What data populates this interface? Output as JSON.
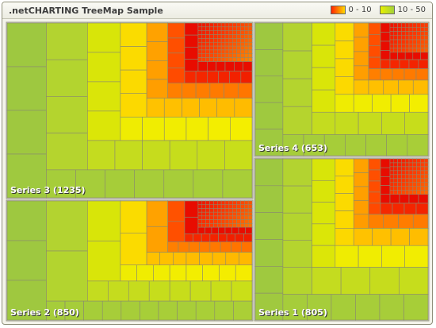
{
  "chart": {
    "title": ".netCHARTING TreeMap Sample"
  },
  "legend": [
    {
      "label": "0 - 10",
      "gradient": [
        "#ff2400",
        "#ffd800"
      ]
    },
    {
      "label": "10 - 50",
      "gradient": [
        "#e8f000",
        "#a4d23a"
      ]
    }
  ],
  "chart_data": {
    "type": "heatmap",
    "title": ".netCHARTING TreeMap Sample",
    "series": [
      {
        "name": "Series 3",
        "total": 1235,
        "label": "Series 3 (1235)"
      },
      {
        "name": "Series 4",
        "total": 653,
        "label": "Series 4 (653)"
      },
      {
        "name": "Series 2",
        "total": 850,
        "label": "Series 2 (850)"
      },
      {
        "name": "Series 1",
        "total": 805,
        "label": "Series 1 (805)"
      }
    ],
    "color_scale": [
      {
        "range": [
          0,
          10
        ],
        "colors": [
          "#e01000",
          "#ff5a00",
          "#ffa000",
          "#ffd000"
        ]
      },
      {
        "range": [
          10,
          50
        ],
        "colors": [
          "#f0f000",
          "#d4e40a",
          "#b8d82a",
          "#a2cc3c"
        ]
      }
    ]
  }
}
